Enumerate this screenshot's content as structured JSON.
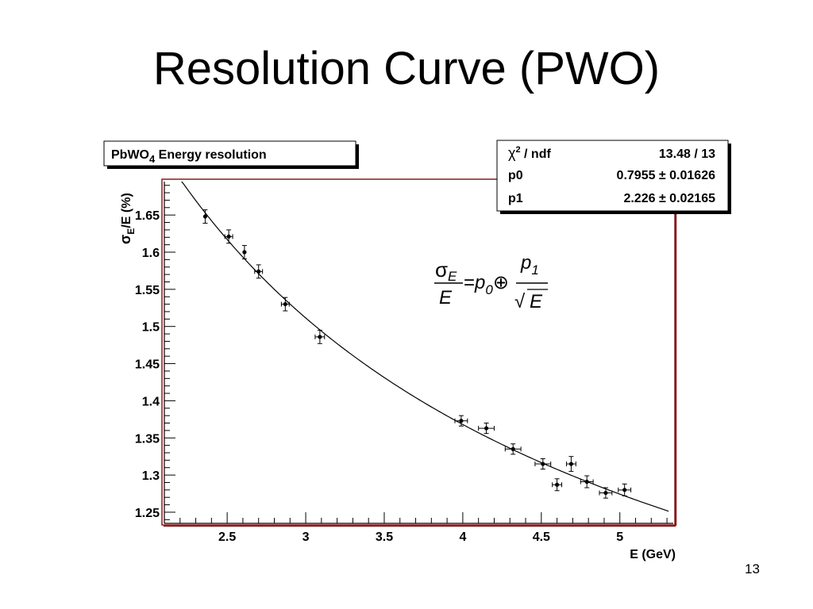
{
  "slide": {
    "title": "Resolution Curve (PWO)",
    "page_number": "13"
  },
  "chart_data": {
    "type": "scatter",
    "title": "PbWO4 Energy resolution",
    "title_parts": {
      "base": "PbWO",
      "sub": "4",
      "rest": " Energy resolution"
    },
    "xlabel": "E (GeV)",
    "ylabel_parts": {
      "sigma": "σ",
      "sub": "E",
      "rest": "/E (%)"
    },
    "xlim": [
      2.1,
      5.34
    ],
    "ylim": [
      1.235,
      1.695
    ],
    "x_ticks": [
      2.5,
      3,
      3.5,
      4,
      4.5,
      5
    ],
    "x_tick_labels": [
      "2.5",
      "3",
      "3.5",
      "4",
      "4.5",
      "5"
    ],
    "y_ticks": [
      1.25,
      1.3,
      1.35,
      1.4,
      1.45,
      1.5,
      1.55,
      1.6,
      1.65
    ],
    "y_tick_labels": [
      "1.25",
      "1.3",
      "1.35",
      "1.4",
      "1.45",
      "1.5",
      "1.55",
      "1.6",
      "1.65"
    ],
    "grid": false,
    "points": [
      {
        "x": 2.36,
        "y": 1.648,
        "xerr": 0.0,
        "yerr": 0.009
      },
      {
        "x": 2.51,
        "y": 1.621,
        "xerr": 0.025,
        "yerr": 0.009
      },
      {
        "x": 2.61,
        "y": 1.6,
        "xerr": 0.0,
        "yerr": 0.009
      },
      {
        "x": 2.7,
        "y": 1.574,
        "xerr": 0.025,
        "yerr": 0.009
      },
      {
        "x": 2.87,
        "y": 1.53,
        "xerr": 0.025,
        "yerr": 0.009
      },
      {
        "x": 3.09,
        "y": 1.486,
        "xerr": 0.03,
        "yerr": 0.009
      },
      {
        "x": 3.99,
        "y": 1.373,
        "xerr": 0.04,
        "yerr": 0.007
      },
      {
        "x": 4.15,
        "y": 1.363,
        "xerr": 0.05,
        "yerr": 0.007
      },
      {
        "x": 4.32,
        "y": 1.335,
        "xerr": 0.05,
        "yerr": 0.007
      },
      {
        "x": 4.51,
        "y": 1.315,
        "xerr": 0.05,
        "yerr": 0.007
      },
      {
        "x": 4.6,
        "y": 1.287,
        "xerr": 0.03,
        "yerr": 0.008
      },
      {
        "x": 4.69,
        "y": 1.315,
        "xerr": 0.03,
        "yerr": 0.01
      },
      {
        "x": 4.79,
        "y": 1.291,
        "xerr": 0.04,
        "yerr": 0.008
      },
      {
        "x": 4.91,
        "y": 1.276,
        "xerr": 0.04,
        "yerr": 0.007
      },
      {
        "x": 5.03,
        "y": 1.28,
        "xerr": 0.04,
        "yerr": 0.008
      }
    ],
    "fit": {
      "function": "sqrt(p0^2 + p1^2/E)",
      "p0": 0.7955,
      "p1": 2.226,
      "x_range": [
        2.21,
        5.31
      ]
    },
    "stats_box": {
      "rows": [
        {
          "label_sym": "χ",
          "label_sup": "2",
          "label_rest": " / ndf",
          "value": "13.48 / 13"
        },
        {
          "label_sym": "",
          "label_sup": "",
          "label_rest": "p0",
          "value": "0.7955 ± 0.01626"
        },
        {
          "label_sym": "",
          "label_sup": "",
          "label_rest": "p1",
          "value": "2.226 ± 0.02165"
        }
      ]
    },
    "formula": {
      "sigma": "σ",
      "sigma_sub": "E",
      "den1": "E",
      "eq": "=",
      "p": "p",
      "p0_sub": "0",
      "oplus": "⊕",
      "p1_sub": "1",
      "sqrt_sym": "√",
      "sqrt_arg": "E"
    },
    "colors": {
      "frame": "#8b1a1a",
      "axis": "#000000",
      "marker": "#000000",
      "fit_line": "#000000",
      "box_shadow": "#000000"
    }
  }
}
